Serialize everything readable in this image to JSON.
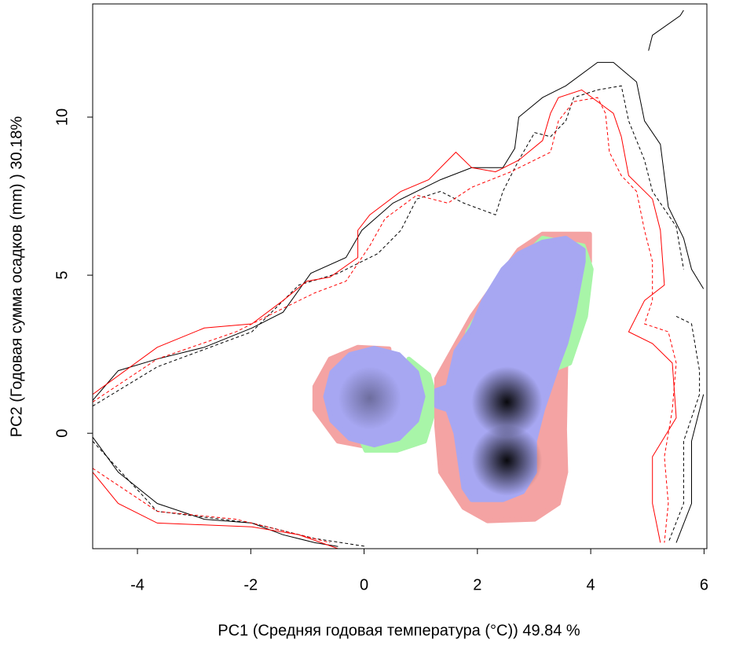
{
  "chart_data": {
    "type": "niche",
    "xlabel": "PC1 (Средняя годовая температура (°C)) 49.84 %",
    "ylabel": "PC2 (Годовая сумма осадков  (mm) ) 30.18%",
    "xlim": [
      -4.79,
      6.05
    ],
    "ylim": [
      -3.65,
      13.58
    ],
    "xticks": [
      -4,
      -2,
      0,
      2,
      4,
      6
    ],
    "yticks": [
      0,
      5,
      10
    ],
    "regions": [
      {
        "color": "#f4a3a3",
        "x": [
          -0.87,
          -0.6,
          -0.11,
          0.44,
          0.51,
          0.1,
          -0.46,
          -0.87
        ],
        "y": [
          1.48,
          2.35,
          2.72,
          2.67,
          1.23,
          -0.44,
          -0.25,
          0.74
        ]
      },
      {
        "color": "#a8f5a8",
        "x": [
          0.79,
          1.14,
          1.28,
          1.07,
          0.58,
          0.03,
          -0.04,
          0.79
        ],
        "y": [
          2.35,
          1.85,
          0.99,
          -0.25,
          -0.54,
          -0.54,
          -0.25,
          1.23
        ]
      },
      {
        "color": "#f4a3a3",
        "x": [
          1.28,
          1.55,
          1.9,
          2.73,
          3.15,
          3.98,
          3.98,
          3.56,
          3.54,
          3.56,
          3.43,
          3.01,
          2.18,
          1.76,
          1.35,
          1.28
        ],
        "y": [
          1.73,
          2.59,
          3.7,
          5.8,
          6.3,
          6.3,
          5.43,
          2.1,
          0.12,
          -1.23,
          -2.22,
          -2.72,
          -2.77,
          -2.35,
          -1.23,
          0.25
        ]
      },
      {
        "color": "#a8f5a8",
        "x": [
          1.83,
          2.32,
          3.15,
          3.87,
          4.01,
          3.91,
          3.63,
          3.29,
          1.62
        ],
        "y": [
          3.21,
          4.69,
          6.17,
          5.93,
          5.19,
          3.7,
          2.22,
          1.98,
          1.73
        ]
      },
      {
        "color": "#a7a7f2",
        "x": [
          1.04,
          0.93,
          0.61,
          0.18,
          -0.25,
          -0.57,
          -0.68,
          -0.57,
          -0.25,
          0.18,
          0.61,
          0.93
        ],
        "y": [
          1.16,
          1.93,
          2.49,
          2.69,
          2.49,
          1.93,
          1.16,
          0.4,
          -0.17,
          -0.37,
          -0.17,
          0.4
        ]
      },
      {
        "color": "#a7a7f2",
        "x": [
          1.28,
          1.48,
          1.62,
          1.9,
          2.11,
          2.45,
          2.73,
          3.15,
          3.56,
          3.87,
          3.87,
          3.7,
          3.56,
          3.43,
          3.15,
          3.01,
          3.01,
          2.8,
          2.45,
          1.9,
          1.76,
          1.62,
          1.48,
          1.28
        ],
        "y": [
          1.36,
          1.48,
          2.59,
          3.33,
          4.2,
          5.19,
          5.68,
          6.05,
          6.17,
          5.8,
          5.43,
          3.83,
          2.84,
          2.22,
          0.74,
          -0.25,
          -1.23,
          -1.85,
          -2.1,
          -2.1,
          -1.73,
          0.0,
          0.74,
          0.86
        ]
      }
    ],
    "peaks": {
      "color": "#000060",
      "x": [
        0.1,
        2.52,
        2.52
      ],
      "y": [
        1.11,
        0.99,
        -0.86
      ]
    },
    "series": [
      {
        "color": "#000000",
        "dash": false,
        "x": [
          -4.79,
          -4.34,
          -3.65,
          -2.82,
          -1.98,
          -1.43,
          -0.94,
          -0.32,
          -0.04,
          0.51,
          1.35,
          1.9,
          2.45,
          2.66,
          2.73,
          3.15,
          3.56,
          4.12,
          4.4,
          4.81,
          4.95,
          5.23,
          5.37,
          5.64,
          5.78,
          5.99,
          null,
          -4.79,
          -4.34,
          -3.65,
          -2.82,
          -1.98,
          -1.43,
          -0.87,
          -0.46,
          null,
          5.02,
          5.09,
          5.58,
          5.64,
          null,
          5.99,
          5.78,
          5.78,
          5.51
        ],
        "y": [
          1.04,
          1.98,
          2.35,
          2.72,
          3.33,
          3.83,
          5.06,
          5.56,
          6.42,
          7.28,
          8.02,
          8.4,
          8.4,
          9.01,
          10.0,
          10.62,
          10.99,
          11.73,
          11.73,
          11.11,
          9.88,
          9.14,
          7.16,
          6.17,
          5.19,
          4.57,
          null,
          -0.12,
          -1.23,
          -2.22,
          -2.72,
          -2.84,
          -3.21,
          -3.46,
          -3.58,
          null,
          12.1,
          12.59,
          13.21,
          13.38,
          null,
          1.23,
          -0.25,
          -2.22,
          -3.46
        ]
      },
      {
        "color": "#000000",
        "dash": true,
        "x": [
          -4.79,
          -3.65,
          -1.98,
          -1.15,
          -0.46,
          0.24,
          0.65,
          0.93,
          1.35,
          1.76,
          2.32,
          2.45,
          2.73,
          3.01,
          3.29,
          3.56,
          3.7,
          4.12,
          4.54,
          4.67,
          4.95,
          5.09,
          5.51,
          5.64,
          null,
          5.51,
          5.78,
          5.92,
          5.92,
          5.64,
          5.64,
          5.37,
          null,
          -4.79,
          -3.65,
          -1.98,
          -0.87,
          0.03
        ],
        "y": [
          0.86,
          2.1,
          3.21,
          4.69,
          5.06,
          5.68,
          6.42,
          7.41,
          7.65,
          7.28,
          6.91,
          7.65,
          8.64,
          9.51,
          9.38,
          9.88,
          10.62,
          10.86,
          10.99,
          9.88,
          8.64,
          7.65,
          6.54,
          5.19,
          null,
          3.7,
          3.46,
          1.98,
          1.23,
          -0.25,
          -2.22,
          -3.46,
          null,
          -0.25,
          -2.47,
          -2.84,
          -3.33,
          -3.58
        ]
      },
      {
        "color": "#ff0000",
        "dash": false,
        "x": [
          -4.79,
          -3.65,
          -2.82,
          -1.98,
          -1.43,
          -1.01,
          -0.6,
          -0.11,
          -0.11,
          0.1,
          0.65,
          1.14,
          1.62,
          1.9,
          2.32,
          2.73,
          3.15,
          3.29,
          3.43,
          3.84,
          4.4,
          4.54,
          4.67,
          5.09,
          5.23,
          5.3,
          4.95,
          4.67,
          5.09,
          5.44,
          5.51,
          5.09,
          5.09,
          5.23,
          null,
          -4.79,
          -4.34,
          -3.65,
          -1.98,
          -1.15,
          -0.46
        ],
        "y": [
          1.23,
          2.72,
          3.33,
          3.46,
          4.2,
          4.81,
          4.94,
          5.56,
          6.42,
          6.91,
          7.65,
          8.02,
          8.89,
          8.4,
          8.27,
          8.64,
          9.26,
          10.12,
          10.62,
          10.86,
          10.12,
          9.38,
          8.15,
          7.41,
          6.42,
          4.69,
          4.2,
          3.21,
          2.84,
          2.22,
          0.49,
          -0.74,
          -2.22,
          -3.46,
          null,
          -1.23,
          -2.22,
          -2.84,
          -2.96,
          -3.21,
          -3.65
        ]
      },
      {
        "color": "#ff0000",
        "dash": true,
        "x": [
          -4.79,
          -3.65,
          -2.26,
          -1.43,
          -0.87,
          -0.32,
          0.1,
          0.37,
          0.93,
          1.48,
          1.9,
          2.59,
          3.29,
          3.43,
          3.7,
          4.12,
          4.26,
          4.33,
          4.54,
          4.81,
          4.95,
          5.09,
          5.09,
          4.95,
          5.37,
          5.51,
          5.44,
          5.3,
          5.37,
          5.3,
          null,
          -4.79,
          -3.65,
          -2.26,
          -1.15,
          -0.6
        ],
        "y": [
          0.99,
          2.35,
          3.21,
          3.95,
          4.44,
          4.81,
          5.93,
          6.79,
          7.53,
          7.28,
          7.78,
          8.27,
          8.89,
          9.88,
          10.49,
          10.62,
          10.12,
          8.89,
          8.15,
          7.65,
          6.42,
          5.43,
          4.2,
          3.46,
          3.21,
          2.22,
          0.74,
          -0.74,
          -2.22,
          -3.46,
          null,
          -1.11,
          -2.47,
          -2.72,
          -3.21,
          -3.46
        ]
      }
    ]
  }
}
